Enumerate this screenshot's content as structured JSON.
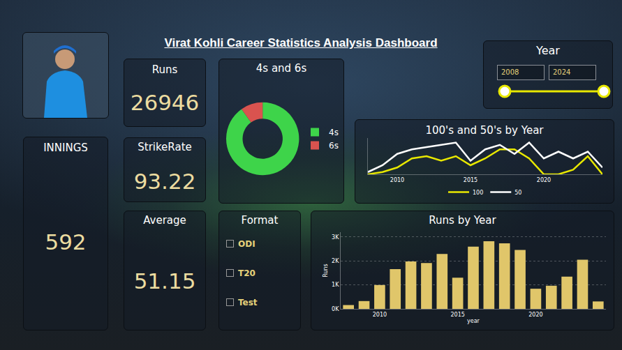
{
  "title": "Virat Kohli Career Statistics Analysis Dashboard",
  "kpis": [
    {
      "label": "Runs",
      "value": 26946
    },
    {
      "label": "StrikeRate",
      "value": 93.22
    },
    {
      "label": "Average",
      "value": 51.15
    },
    {
      "label": "INNINGS",
      "value": 592
    }
  ],
  "year_slicer": {
    "title": "Year",
    "start": 2008,
    "end": 2024
  },
  "format_slicer": {
    "title": "Format",
    "options": [
      "ODI",
      "T20",
      "Test"
    ]
  },
  "chart_data": [
    {
      "type": "pie",
      "title": "4s and 6s",
      "categories": [
        "4s",
        "6s"
      ],
      "values": [
        2683,
        292
      ],
      "colors": [
        "#3ed44a",
        "#d9534f"
      ],
      "legend": "right"
    },
    {
      "type": "line",
      "title": "100's and 50's by Year",
      "x": [
        2008,
        2009,
        2010,
        2011,
        2012,
        2013,
        2014,
        2015,
        2016,
        2017,
        2018,
        2019,
        2020,
        2021,
        2022,
        2023,
        2024
      ],
      "series": [
        {
          "name": "100",
          "color": "#e8e800",
          "values": [
            0,
            1,
            3,
            7,
            8,
            6,
            8,
            4,
            7,
            11,
            11,
            7,
            0,
            0,
            2,
            8,
            0
          ]
        },
        {
          "name": "50",
          "color": "#ffffff",
          "values": [
            1,
            4,
            9,
            11,
            12,
            13,
            14,
            6,
            11,
            13,
            9,
            14,
            7,
            10,
            7,
            10,
            3
          ]
        }
      ],
      "xlim": [
        2008,
        2024
      ],
      "xticks": [
        2010,
        2015,
        2020
      ],
      "ylim": [
        0,
        16
      ],
      "tick_labels": "x",
      "legend": "bottom"
    },
    {
      "type": "bar",
      "title": "Runs by Year",
      "x_label": "year",
      "y_label": "Runs",
      "x": [
        2008,
        2009,
        2010,
        2011,
        2012,
        2013,
        2014,
        2015,
        2016,
        2017,
        2018,
        2019,
        2020,
        2021,
        2022,
        2023,
        2024
      ],
      "values": [
        159,
        325,
        995,
        1655,
        1980,
        1910,
        2290,
        1300,
        2595,
        2820,
        2735,
        2455,
        840,
        965,
        1345,
        2050,
        310
      ],
      "color": "#e0c66a",
      "xlim": [
        2007.5,
        2024.5
      ],
      "xticks": [
        2010,
        2015,
        2020
      ],
      "ylim": [
        0,
        3200
      ],
      "yticks": [
        {
          "value": 0,
          "label": "0K"
        },
        {
          "value": 1000,
          "label": "1K"
        },
        {
          "value": 2000,
          "label": "2K"
        },
        {
          "value": 3000,
          "label": "3K"
        }
      ],
      "grid": true
    }
  ]
}
